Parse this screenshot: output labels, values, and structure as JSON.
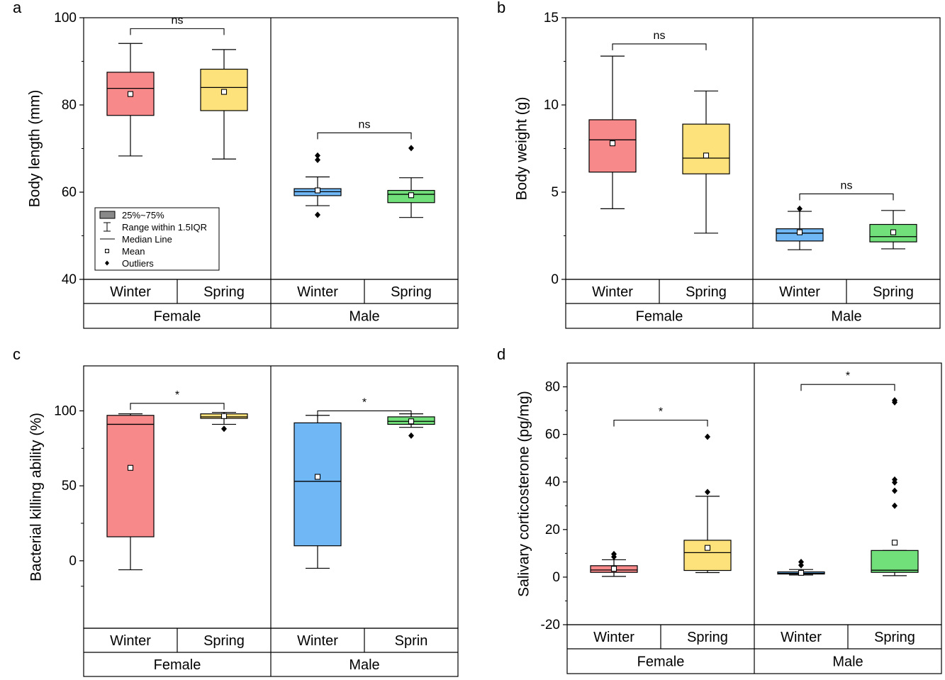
{
  "colors": {
    "winter_female": "#f7898b",
    "spring_female": "#fde27b",
    "winter_male": "#6fb7f5",
    "spring_male": "#72e07a",
    "axis": "#000000"
  },
  "legend": {
    "items": [
      {
        "label": "25%~75%",
        "icon": "filled-box-icon"
      },
      {
        "label": "Range within 1.5IQR",
        "icon": "whisker-icon"
      },
      {
        "label": "Median Line",
        "icon": "line-icon"
      },
      {
        "label": "Mean",
        "icon": "open-square-icon"
      },
      {
        "label": "Outliers",
        "icon": "diamond-icon"
      }
    ]
  },
  "chart_data": [
    {
      "panel_label": "a",
      "type": "box",
      "ylabel": "Body length (mm)",
      "ylim": [
        40,
        100
      ],
      "yticks": [
        40,
        60,
        80,
        100
      ],
      "groups": [
        "Female",
        "Male"
      ],
      "categories": [
        "Winter",
        "Spring",
        "Winter",
        "Spring"
      ],
      "boxes": [
        {
          "group": "Female",
          "season": "Winter",
          "min": 68.3,
          "q1": 77.6,
          "median": 83.8,
          "q3": 87.5,
          "max": 94.1,
          "mean": 82.5,
          "outliers": []
        },
        {
          "group": "Female",
          "season": "Spring",
          "min": 67.6,
          "q1": 78.7,
          "median": 84.0,
          "q3": 88.2,
          "max": 92.7,
          "mean": 83.0,
          "outliers": []
        },
        {
          "group": "Male",
          "season": "Winter",
          "min": 56.9,
          "q1": 59.2,
          "median": 60.1,
          "q3": 60.8,
          "max": 63.5,
          "mean": 60.4,
          "outliers": [
            54.8,
            67.4,
            68.4
          ]
        },
        {
          "group": "Male",
          "season": "Spring",
          "min": 54.2,
          "q1": 57.6,
          "median": 59.5,
          "q3": 60.4,
          "max": 63.3,
          "mean": 59.3,
          "outliers": [
            70.1
          ]
        }
      ],
      "brackets": [
        {
          "from": 0,
          "to": 1,
          "label": "ns",
          "y": 97.5
        },
        {
          "from": 2,
          "to": 3,
          "label": "ns",
          "y": 73.6
        }
      ],
      "legend": true
    },
    {
      "panel_label": "b",
      "type": "box",
      "ylabel": "Body weight (g)",
      "ylim": [
        0,
        15
      ],
      "yticks": [
        0,
        5,
        10,
        15
      ],
      "groups": [
        "Female",
        "Male"
      ],
      "categories": [
        "Winter",
        "Spring",
        "Winter",
        "Spring"
      ],
      "boxes": [
        {
          "group": "Female",
          "season": "Winter",
          "min": 4.05,
          "q1": 6.15,
          "median": 8.0,
          "q3": 9.15,
          "max": 12.8,
          "mean": 7.8,
          "outliers": []
        },
        {
          "group": "Female",
          "season": "Spring",
          "min": 2.65,
          "q1": 6.05,
          "median": 6.95,
          "q3": 8.9,
          "max": 10.8,
          "mean": 7.1,
          "outliers": []
        },
        {
          "group": "Male",
          "season": "Winter",
          "min": 1.7,
          "q1": 2.2,
          "median": 2.65,
          "q3": 2.9,
          "max": 3.9,
          "mean": 2.7,
          "outliers": [
            4.05
          ]
        },
        {
          "group": "Male",
          "season": "Spring",
          "min": 1.75,
          "q1": 2.15,
          "median": 2.45,
          "q3": 3.15,
          "max": 3.95,
          "mean": 2.7,
          "outliers": []
        }
      ],
      "brackets": [
        {
          "from": 0,
          "to": 1,
          "label": "ns",
          "y": 13.5
        },
        {
          "from": 2,
          "to": 3,
          "label": "ns",
          "y": 4.9
        }
      ],
      "legend": false
    },
    {
      "panel_label": "c",
      "type": "box",
      "ylabel": "Bacterial killing ability (%)",
      "ylim": [
        -45,
        130
      ],
      "yticks": [
        0,
        50,
        100
      ],
      "minor_ticks": [
        -17,
        25
      ],
      "groups": [
        "Female",
        "Male"
      ],
      "categories": [
        "Winter",
        "Spring",
        "Winter",
        "Sprin"
      ],
      "boxes": [
        {
          "group": "Female",
          "season": "Winter",
          "min": -6,
          "q1": 16,
          "median": 91,
          "q3": 97,
          "max": 98,
          "mean": 62,
          "outliers": []
        },
        {
          "group": "Female",
          "season": "Spring",
          "min": 91,
          "q1": 95,
          "median": 96,
          "q3": 98,
          "max": 99,
          "mean": 96.5,
          "outliers": [
            88
          ]
        },
        {
          "group": "Male",
          "season": "Winter",
          "min": -5,
          "q1": 10,
          "median": 53,
          "q3": 92,
          "max": 97,
          "mean": 56,
          "outliers": []
        },
        {
          "group": "Male",
          "season": "Spring",
          "min": 89,
          "q1": 91,
          "median": 93,
          "q3": 96,
          "max": 98,
          "mean": 93,
          "outliers": [
            83.5
          ]
        }
      ],
      "brackets": [
        {
          "from": 0,
          "to": 1,
          "label": "*",
          "y": 105
        },
        {
          "from": 2,
          "to": 3,
          "label": "*",
          "y": 100
        }
      ],
      "legend": false
    },
    {
      "panel_label": "d",
      "type": "box",
      "ylabel": "Salivary corticosterone (pg/mg)",
      "ylim": [
        -20,
        90
      ],
      "yticks": [
        -20,
        0,
        20,
        40,
        60,
        80
      ],
      "groups": [
        "Female",
        "Male"
      ],
      "categories": [
        "Winter",
        "Spring",
        "Winter",
        "Spring"
      ],
      "boxes": [
        {
          "group": "Female",
          "season": "Winter",
          "min": 0.3,
          "q1": 2.0,
          "median": 3.0,
          "q3": 4.8,
          "max": 7.3,
          "mean": 3.5,
          "outliers": [
            8.5,
            9.7
          ]
        },
        {
          "group": "Female",
          "season": "Spring",
          "min": 1.9,
          "q1": 2.8,
          "median": 10.3,
          "q3": 15.5,
          "max": 34.0,
          "mean": 12.3,
          "outliers": [
            35.8,
            59.0
          ]
        },
        {
          "group": "Male",
          "season": "Winter",
          "min": 0.9,
          "q1": 1.3,
          "median": 1.6,
          "q3": 2.2,
          "max": 3.2,
          "mean": 1.8,
          "outliers": [
            5.0,
            6.4
          ]
        },
        {
          "group": "Male",
          "season": "Spring",
          "min": 0.6,
          "q1": 2.0,
          "median": 2.9,
          "q3": 11.2,
          "max": 11.2,
          "mean": 14.5,
          "outliers": [
            30.0,
            36.3,
            39.8,
            41.0,
            73.5,
            74.3
          ]
        }
      ],
      "brackets": [
        {
          "from": 0,
          "to": 1,
          "label": "*",
          "y": 66
        },
        {
          "from": 2,
          "to": 3,
          "label": "*",
          "y": 81
        }
      ],
      "legend": false
    }
  ]
}
